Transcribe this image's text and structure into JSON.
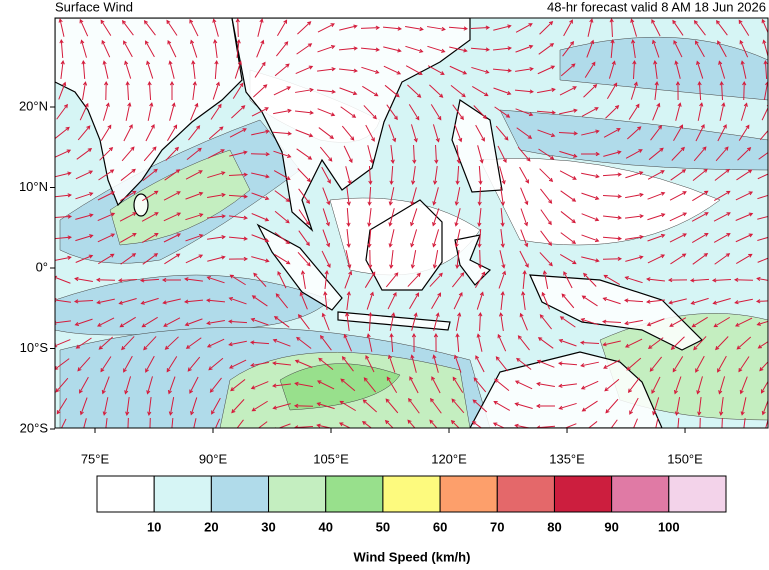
{
  "header": {
    "title": "Surface Wind",
    "subtitle": "48-hr forecast valid 8 AM 18 Jun 2026"
  },
  "map": {
    "lon_ticks": [
      {
        "value": 75,
        "label": "75°E"
      },
      {
        "value": 90,
        "label": "90°E"
      },
      {
        "value": 105,
        "label": "105°E"
      },
      {
        "value": 120,
        "label": "120°E"
      },
      {
        "value": 135,
        "label": "135°E"
      },
      {
        "value": 150,
        "label": "150°E"
      }
    ],
    "lat_ticks": [
      {
        "value": 20,
        "label": "20°N"
      },
      {
        "value": 10,
        "label": "10°N"
      },
      {
        "value": 0,
        "label": "0°"
      },
      {
        "value": -10,
        "label": "10°S"
      },
      {
        "value": -20,
        "label": "20°S"
      }
    ]
  },
  "colorbar": {
    "colors": [
      "#ffffff",
      "#d6f5f5",
      "#b0dbea",
      "#c4eec0",
      "#98e08c",
      "#fdfa7e",
      "#fd9f6b",
      "#e4686a",
      "#cc1e3e",
      "#e07aa5",
      "#f3d3ea"
    ],
    "levels": [
      10,
      20,
      30,
      40,
      50,
      60,
      70,
      80,
      90,
      100
    ],
    "label": "Wind Speed (km/h)"
  }
}
